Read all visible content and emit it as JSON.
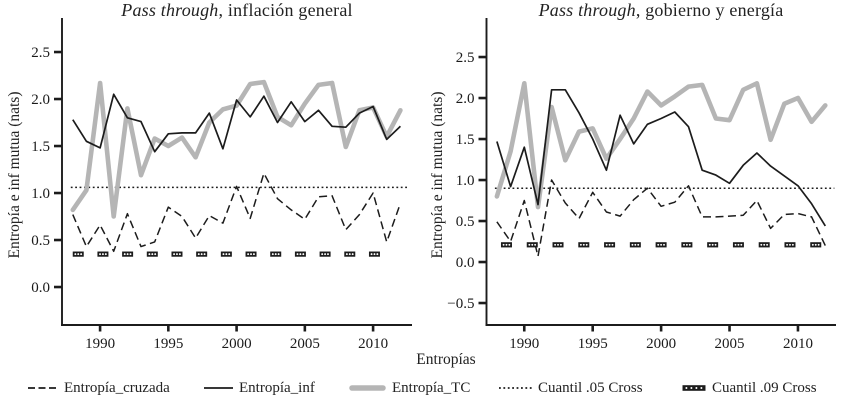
{
  "figure": {
    "x_axis_label": "Entropías",
    "y_axis_label": "Entropía e inf mutua (nats)"
  },
  "colors": {
    "line_black": "#1c1c1c",
    "line_gray": "#b5b5b5",
    "background": "#ffffff"
  },
  "legend": {
    "items": [
      {
        "label": "Entropía_cruzada",
        "swatch": "dashed-line"
      },
      {
        "label": "Entropía_inf",
        "swatch": "solid-line"
      },
      {
        "label": "Entropía_TC",
        "swatch": "thick-gray-line"
      },
      {
        "label": "Cuantil .05 Cross",
        "swatch": "dotted-line"
      },
      {
        "label": "Cuantil .09 Cross",
        "swatch": "dotted-bar-marker"
      }
    ]
  },
  "chart_data": [
    {
      "type": "line",
      "title_italic": "Pass through",
      "title_rest": ", inflación general",
      "ylabel": "Entropía e inf mutua (nats)",
      "xlabel": "Entropías",
      "x": [
        1988,
        1989,
        1990,
        1991,
        1992,
        1993,
        1994,
        1995,
        1996,
        1997,
        1998,
        1999,
        2000,
        2001,
        2002,
        2003,
        2004,
        2005,
        2006,
        2007,
        2008,
        2009,
        2010,
        2011,
        2012
      ],
      "x_tick_values": [
        1990,
        1995,
        2000,
        2005,
        2010
      ],
      "x_tick_labels": [
        "1990",
        "1995",
        "2000",
        "2005",
        "2010"
      ],
      "y_tick_values": [
        0.0,
        0.5,
        1.0,
        1.5,
        2.0,
        2.5
      ],
      "y_tick_labels": [
        "0.0",
        "0.5",
        "1.0",
        "1.5",
        "2.0",
        "2.5"
      ],
      "ylim": [
        -0.404,
        2.862
      ],
      "xlim": [
        1987.21,
        2012.85
      ],
      "grid": false,
      "series": [
        {
          "name": "Entropía_cruzada",
          "style": "dashed",
          "values": [
            0.77,
            0.43,
            0.66,
            0.38,
            0.78,
            0.43,
            0.48,
            0.85,
            0.75,
            0.52,
            0.76,
            0.68,
            1.07,
            0.73,
            1.21,
            0.94,
            0.82,
            0.72,
            0.96,
            0.97,
            0.61,
            0.77,
            1.0,
            0.48,
            0.89
          ]
        },
        {
          "name": "Entropía_inf",
          "style": "solid",
          "values": [
            1.78,
            1.55,
            1.48,
            2.05,
            1.8,
            1.76,
            1.44,
            1.63,
            1.64,
            1.64,
            1.85,
            1.47,
            1.99,
            1.81,
            2.03,
            1.75,
            1.97,
            1.76,
            1.88,
            1.71,
            1.7,
            1.85,
            1.92,
            1.57,
            1.71
          ]
        },
        {
          "name": "Entropía_TC",
          "style": "thick-gray",
          "values": [
            0.82,
            1.03,
            2.17,
            0.75,
            1.9,
            1.19,
            1.58,
            1.5,
            1.59,
            1.38,
            1.75,
            1.89,
            1.93,
            2.16,
            2.18,
            1.81,
            1.72,
            1.95,
            2.15,
            2.17,
            1.49,
            1.88,
            1.91,
            1.6,
            1.88
          ]
        },
        {
          "name": "Cuantil .05 Cross",
          "style": "dotted-hline",
          "value": 1.06
        },
        {
          "name": "Cuantil .09 Cross",
          "style": "marker-row",
          "value": 0.35,
          "marker_count": 13,
          "marker_year_start": 1988.4,
          "marker_year_end": 2010.1
        }
      ]
    },
    {
      "type": "line",
      "title_italic": "Pass through",
      "title_rest": ", gobierno y energía",
      "ylabel": "Entropía e inf mutua (nats)",
      "xlabel": "Entropías",
      "x": [
        1988,
        1989,
        1990,
        1991,
        1992,
        1993,
        1994,
        1995,
        1996,
        1997,
        1998,
        1999,
        2000,
        2001,
        2002,
        2003,
        2004,
        2005,
        2006,
        2007,
        2008,
        2009,
        2010,
        2011,
        2012
      ],
      "x_tick_values": [
        1990,
        1995,
        2000,
        2005,
        2010
      ],
      "x_tick_labels": [
        "1990",
        "1995",
        "2000",
        "2005",
        "2010"
      ],
      "y_tick_values": [
        -0.5,
        0.0,
        0.5,
        1.0,
        1.5,
        2.0,
        2.5
      ],
      "y_tick_labels": [
        "−0.5",
        "0.0",
        "0.5",
        "1.0",
        "1.5",
        "2.0",
        "2.5"
      ],
      "ylim": [
        -0.768,
        2.976
      ],
      "xlim": [
        1987.24,
        2012.78
      ],
      "grid": false,
      "series": [
        {
          "name": "Entropía_cruzada",
          "style": "dashed",
          "values": [
            0.49,
            0.25,
            0.75,
            0.07,
            1.0,
            0.72,
            0.53,
            0.85,
            0.61,
            0.56,
            0.76,
            0.9,
            0.68,
            0.73,
            0.93,
            0.55,
            0.55,
            0.56,
            0.57,
            0.75,
            0.41,
            0.58,
            0.59,
            0.55,
            0.2
          ]
        },
        {
          "name": "Entropía_inf",
          "style": "solid",
          "values": [
            1.47,
            0.92,
            1.4,
            0.7,
            2.1,
            2.1,
            1.82,
            1.5,
            1.12,
            1.79,
            1.44,
            1.68,
            1.75,
            1.83,
            1.65,
            1.12,
            1.06,
            0.96,
            1.18,
            1.33,
            1.17,
            1.05,
            0.93,
            0.71,
            0.44
          ]
        },
        {
          "name": "Entropía_TC",
          "style": "thick-gray",
          "values": [
            0.8,
            1.35,
            2.18,
            0.67,
            1.89,
            1.24,
            1.59,
            1.63,
            1.26,
            1.5,
            1.75,
            2.08,
            1.91,
            2.02,
            2.14,
            2.16,
            1.75,
            1.73,
            2.1,
            2.18,
            1.49,
            1.93,
            2.0,
            1.71,
            1.91
          ]
        },
        {
          "name": "Cuantil .05 Cross",
          "style": "dotted-hline",
          "value": 0.9
        },
        {
          "name": "Cuantil .09 Cross",
          "style": "marker-row",
          "value": 0.21,
          "marker_count": 13,
          "marker_year_start": 1988.7,
          "marker_year_end": 2011.3
        }
      ]
    }
  ]
}
